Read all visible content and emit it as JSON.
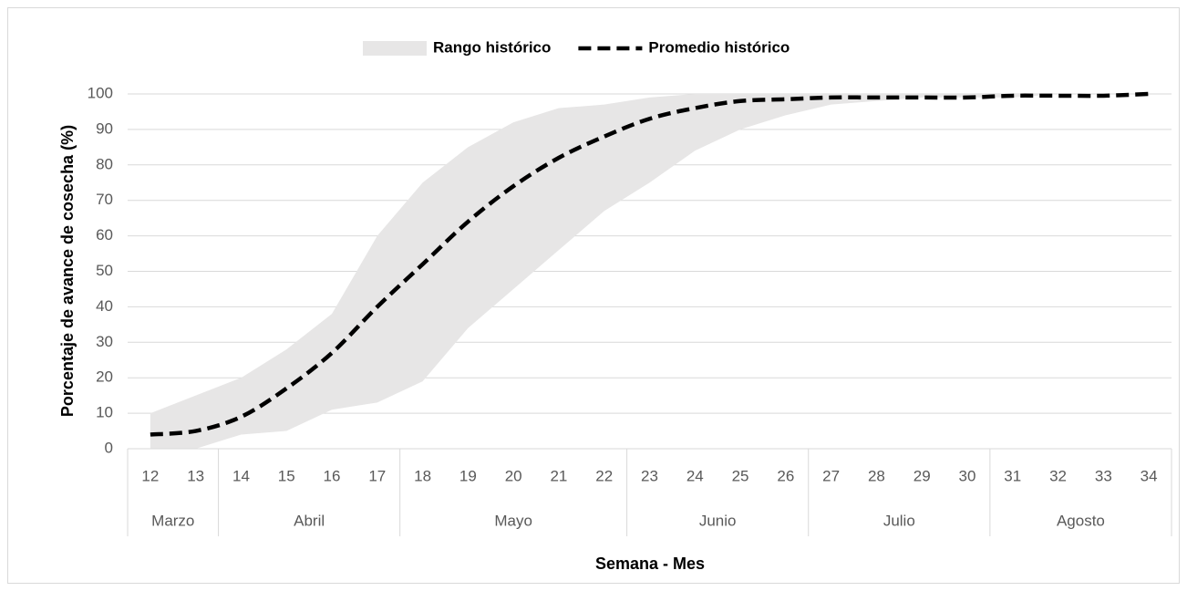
{
  "chart_data": {
    "type": "line",
    "legend": "top",
    "x_title": "Semana - Mes",
    "y_title": "Porcentaje de avance de cosecha (%)",
    "categories": [
      "12",
      "13",
      "14",
      "15",
      "16",
      "17",
      "18",
      "19",
      "20",
      "21",
      "22",
      "23",
      "24",
      "25",
      "26",
      "27",
      "28",
      "29",
      "30",
      "31",
      "32",
      "33",
      "34"
    ],
    "x_groups": [
      "Marzo",
      "Marzo",
      "Abril",
      "Abril",
      "Abril",
      "Abril",
      "Mayo",
      "Mayo",
      "Mayo",
      "Mayo",
      "Mayo",
      "Junio",
      "Junio",
      "Junio",
      "Junio",
      "Julio",
      "Julio",
      "Julio",
      "Julio",
      "Agosto",
      "Agosto",
      "Agosto",
      "Agosto"
    ],
    "ylim": [
      0,
      100
    ],
    "yticks": [
      0,
      10,
      20,
      30,
      40,
      50,
      60,
      70,
      80,
      90,
      100
    ],
    "grid": true,
    "series": [
      {
        "name": "Rango histórico",
        "kind": "band",
        "color": "#e7e6e6",
        "low": [
          0,
          0,
          4,
          5,
          11,
          13,
          19,
          34,
          45,
          56,
          67,
          75,
          84,
          90,
          94,
          97,
          98,
          99,
          99,
          99,
          100,
          100,
          100
        ],
        "high": [
          10,
          15,
          20,
          28,
          38,
          60,
          75,
          85,
          92,
          96,
          97,
          99,
          100,
          100,
          100,
          100,
          100,
          100,
          100,
          100,
          100,
          100,
          100
        ]
      },
      {
        "name": "Promedio histórico",
        "kind": "line",
        "color": "#000000",
        "values": [
          4,
          5,
          9,
          17,
          27,
          40,
          52,
          64,
          74,
          82,
          88,
          93,
          96,
          98,
          98.5,
          99,
          99,
          99,
          99,
          99.5,
          99.5,
          99.5,
          100
        ]
      }
    ]
  }
}
